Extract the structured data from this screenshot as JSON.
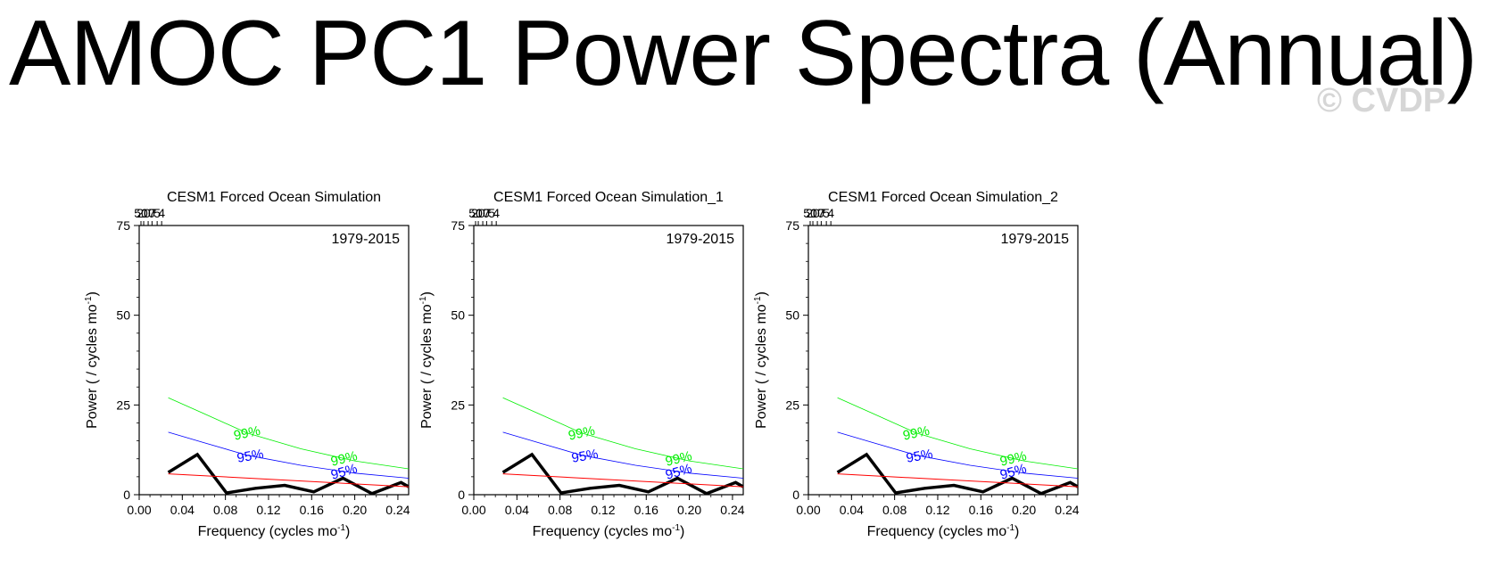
{
  "page": {
    "title": "AMOC PC1 Power Spectra (Annual)",
    "watermark": "© CVDP"
  },
  "colors": {
    "series": "#000000",
    "red_noise": "#ff0000",
    "ci95": "#0000ff",
    "ci99": "#00ee00"
  },
  "chart_data": [
    {
      "type": "line",
      "title": "CESM1 Forced Ocean Simulation",
      "period_label": "1979-2015",
      "xlabel": "Frequency (cycles mo",
      "xlabel_sup": "-1",
      "xlabel_end": ")",
      "ylabel": "Power ( / cycles mo",
      "ylabel_sup": "-1",
      "ylabel_end": ")",
      "xlim": [
        0,
        0.25
      ],
      "ylim": [
        0,
        75
      ],
      "x_ticks": [
        "0.00",
        "0.04",
        "0.08",
        "0.12",
        "0.16",
        "0.20",
        "0.24"
      ],
      "y_ticks": [
        "0",
        "25",
        "50",
        "75"
      ],
      "top_axis_ticks": [
        "50",
        "20",
        "10",
        "7",
        "5",
        "4"
      ],
      "ci_labels": {
        "c99": "99%",
        "c95": "95%"
      },
      "series": [
        {
          "name": "spectrum",
          "x": [
            0.027,
            0.054,
            0.081,
            0.108,
            0.135,
            0.162,
            0.189,
            0.216,
            0.243,
            0.25
          ],
          "y": [
            6.2,
            11.2,
            0.5,
            1.8,
            2.6,
            0.8,
            4.6,
            0.3,
            3.4,
            2.2
          ]
        },
        {
          "name": "red-noise",
          "x": [
            0.027,
            0.25
          ],
          "y": [
            5.8,
            2.2
          ]
        },
        {
          "name": "95% confidence",
          "x": [
            0.027,
            0.06,
            0.1,
            0.15,
            0.2,
            0.25
          ],
          "y": [
            17.4,
            14.5,
            11.0,
            8.2,
            6.0,
            4.6
          ]
        },
        {
          "name": "99% confidence",
          "x": [
            0.027,
            0.06,
            0.1,
            0.15,
            0.2,
            0.25
          ],
          "y": [
            27.0,
            22.6,
            17.2,
            12.8,
            9.4,
            7.2
          ]
        }
      ]
    },
    {
      "type": "line",
      "title": "CESM1 Forced Ocean Simulation_1",
      "period_label": "1979-2015",
      "xlabel": "Frequency (cycles mo",
      "xlabel_sup": "-1",
      "xlabel_end": ")",
      "ylabel": "Power ( / cycles mo",
      "ylabel_sup": "-1",
      "ylabel_end": ")",
      "xlim": [
        0,
        0.25
      ],
      "ylim": [
        0,
        75
      ],
      "x_ticks": [
        "0.00",
        "0.04",
        "0.08",
        "0.12",
        "0.16",
        "0.20",
        "0.24"
      ],
      "y_ticks": [
        "0",
        "25",
        "50",
        "75"
      ],
      "top_axis_ticks": [
        "50",
        "20",
        "10",
        "7",
        "5",
        "4"
      ],
      "ci_labels": {
        "c99": "99%",
        "c95": "95%"
      },
      "series": [
        {
          "name": "spectrum",
          "x": [
            0.027,
            0.054,
            0.081,
            0.108,
            0.135,
            0.162,
            0.189,
            0.216,
            0.243,
            0.25
          ],
          "y": [
            6.2,
            11.2,
            0.5,
            1.8,
            2.6,
            0.8,
            4.6,
            0.3,
            3.4,
            2.2
          ]
        },
        {
          "name": "red-noise",
          "x": [
            0.027,
            0.25
          ],
          "y": [
            5.8,
            2.2
          ]
        },
        {
          "name": "95% confidence",
          "x": [
            0.027,
            0.06,
            0.1,
            0.15,
            0.2,
            0.25
          ],
          "y": [
            17.4,
            14.5,
            11.0,
            8.2,
            6.0,
            4.6
          ]
        },
        {
          "name": "99% confidence",
          "x": [
            0.027,
            0.06,
            0.1,
            0.15,
            0.2,
            0.25
          ],
          "y": [
            27.0,
            22.6,
            17.2,
            12.8,
            9.4,
            7.2
          ]
        }
      ]
    },
    {
      "type": "line",
      "title": "CESM1 Forced Ocean Simulation_2",
      "period_label": "1979-2015",
      "xlabel": "Frequency (cycles mo",
      "xlabel_sup": "-1",
      "xlabel_end": ")",
      "ylabel": "Power ( / cycles mo",
      "ylabel_sup": "-1",
      "ylabel_end": ")",
      "xlim": [
        0,
        0.25
      ],
      "ylim": [
        0,
        75
      ],
      "x_ticks": [
        "0.00",
        "0.04",
        "0.08",
        "0.12",
        "0.16",
        "0.20",
        "0.24"
      ],
      "y_ticks": [
        "0",
        "25",
        "50",
        "75"
      ],
      "top_axis_ticks": [
        "50",
        "20",
        "10",
        "7",
        "5",
        "4"
      ],
      "ci_labels": {
        "c99": "99%",
        "c95": "95%"
      },
      "series": [
        {
          "name": "spectrum",
          "x": [
            0.027,
            0.054,
            0.081,
            0.108,
            0.135,
            0.162,
            0.189,
            0.216,
            0.243,
            0.25
          ],
          "y": [
            6.2,
            11.2,
            0.5,
            1.8,
            2.6,
            0.8,
            4.6,
            0.3,
            3.4,
            2.2
          ]
        },
        {
          "name": "red-noise",
          "x": [
            0.027,
            0.25
          ],
          "y": [
            5.8,
            2.2
          ]
        },
        {
          "name": "95% confidence",
          "x": [
            0.027,
            0.06,
            0.1,
            0.15,
            0.2,
            0.25
          ],
          "y": [
            17.4,
            14.5,
            11.0,
            8.2,
            6.0,
            4.6
          ]
        },
        {
          "name": "99% confidence",
          "x": [
            0.027,
            0.06,
            0.1,
            0.15,
            0.2,
            0.25
          ],
          "y": [
            27.0,
            22.6,
            17.2,
            12.8,
            9.4,
            7.2
          ]
        }
      ]
    }
  ]
}
